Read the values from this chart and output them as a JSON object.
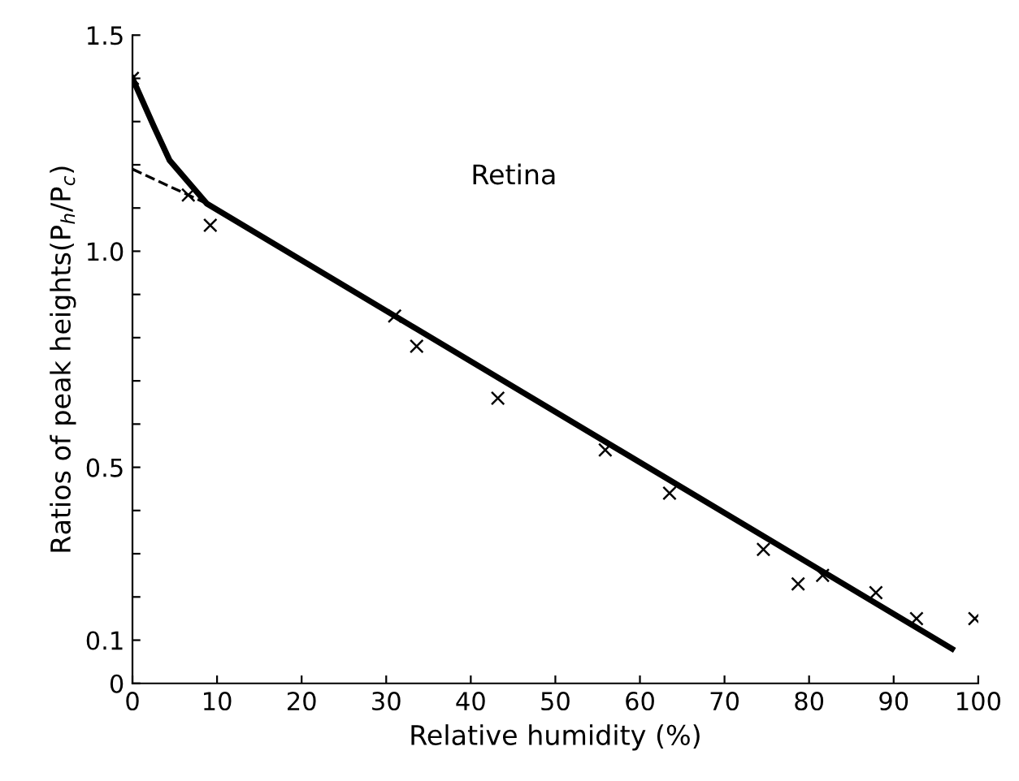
{
  "chart_data": {
    "type": "scatter",
    "xlabel": "Relative humidity (%)",
    "ylabel": "Ratios of peak heights(P$_{h}$/P$_{c}$)",
    "annotations": [
      "Retina"
    ],
    "xlim": [
      0,
      100
    ],
    "ylim": [
      0,
      1.5
    ],
    "xticks": [
      0,
      10,
      20,
      30,
      40,
      50,
      60,
      70,
      80,
      90,
      100
    ],
    "yticks": [
      {
        "value": 0,
        "label": "0"
      },
      {
        "value": 0.1,
        "label": "0.1"
      },
      {
        "value": 0.2,
        "label": null
      },
      {
        "value": 0.3,
        "label": null
      },
      {
        "value": 0.4,
        "label": null
      },
      {
        "value": 0.5,
        "label": "0.5"
      },
      {
        "value": 0.6,
        "label": null
      },
      {
        "value": 0.7,
        "label": null
      },
      {
        "value": 0.8,
        "label": null
      },
      {
        "value": 0.9,
        "label": null
      },
      {
        "value": 1.0,
        "label": "1.0"
      },
      {
        "value": 1.1,
        "label": null
      },
      {
        "value": 1.2,
        "label": null
      },
      {
        "value": 1.3,
        "label": null
      },
      {
        "value": 1.4,
        "label": null
      },
      {
        "value": 1.5,
        "label": "1.5"
      }
    ],
    "grid": false,
    "legend": false,
    "series": [
      {
        "color": "#000000",
        "marker": "cross",
        "x": [
          0,
          6.6,
          9.2,
          31,
          33.6,
          43.2,
          55.9,
          63.5,
          74.6,
          78.7,
          81.6,
          87.9,
          92.7,
          99.6
        ],
        "values": [
          1.4,
          1.13,
          1.06,
          0.85,
          0.78,
          0.66,
          0.54,
          0.44,
          0.31,
          0.23,
          0.25,
          0.21,
          0.15,
          0.15
        ]
      },
      {
        "type": "line",
        "color": "#000000",
        "marker": "none",
        "line_style": "solid",
        "x": [
          0,
          2.5,
          4.4,
          8.8,
          96.9
        ],
        "values": [
          1.4,
          1.29,
          1.21,
          1.11,
          0.08
        ]
      },
      {
        "type": "line",
        "color": "#000000",
        "marker": "none",
        "line_style": "dashed",
        "x": [
          0,
          8.8
        ],
        "values": [
          1.19,
          1.11
        ]
      }
    ]
  }
}
